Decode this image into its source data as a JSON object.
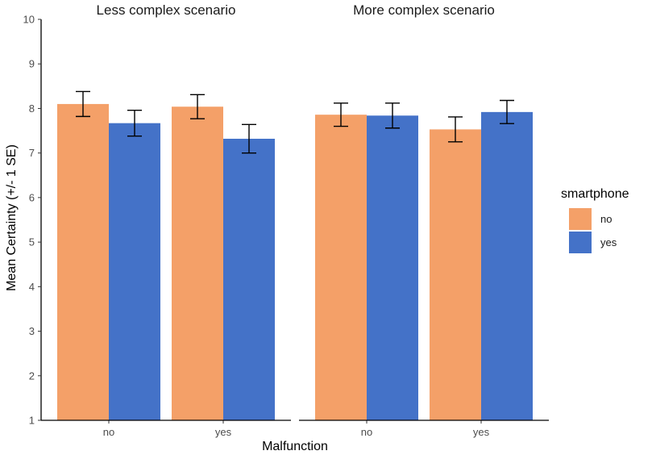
{
  "chart_data": {
    "type": "bar",
    "xlabel": "Malfunction",
    "ylabel": "Mean Certainty (+/- 1 SE)",
    "ylim": [
      1,
      10
    ],
    "yticks": [
      "1",
      "2",
      "3",
      "4",
      "5",
      "6",
      "7",
      "8",
      "9",
      "10"
    ],
    "categories": [
      "no",
      "yes"
    ],
    "legend": {
      "title": "smartphone",
      "placement": "right",
      "entries": [
        {
          "label": "no",
          "color": "#F4A068"
        },
        {
          "label": "yes",
          "color": "#4472C8"
        }
      ]
    },
    "grid": false,
    "panels": [
      {
        "title": "Less complex scenario",
        "series": [
          {
            "name": "no",
            "values": [
              8.1,
              8.04
            ],
            "se": [
              0.28,
              0.27
            ]
          },
          {
            "name": "yes",
            "values": [
              7.67,
              7.32
            ],
            "se": [
              0.29,
              0.32
            ]
          }
        ]
      },
      {
        "title": "More complex scenario",
        "series": [
          {
            "name": "no",
            "values": [
              7.86,
              7.53
            ],
            "se": [
              0.26,
              0.28
            ]
          },
          {
            "name": "yes",
            "values": [
              7.84,
              7.92
            ],
            "se": [
              0.28,
              0.26
            ]
          }
        ]
      }
    ]
  }
}
